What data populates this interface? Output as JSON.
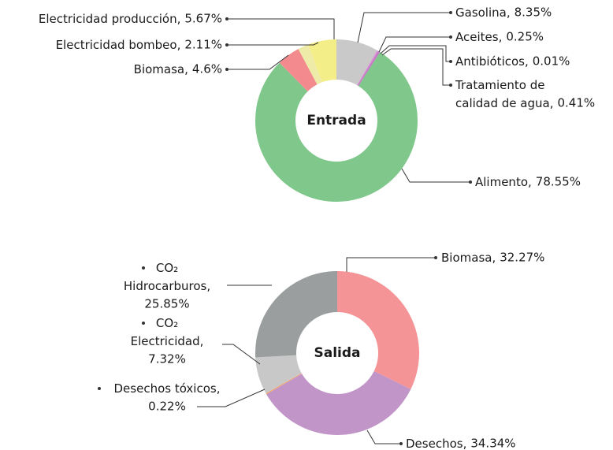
{
  "chart_data": [
    {
      "type": "donut",
      "center_label": "Entrada",
      "categories": [
        "Gasolina,",
        "Aceites,",
        "Antibióticos,",
        "Tratamiento de calidad de agua,",
        "Alimento,",
        "Biomasa,",
        "Electricidad bombeo,",
        "Electricidad producción,"
      ],
      "values": [
        8.35,
        0.25,
        0.01,
        0.41,
        78.55,
        4.6,
        2.11,
        5.67
      ],
      "value_labels": [
        "8.35%",
        "0.25%",
        "0.01%",
        "0.41%",
        "78.55%",
        "4.6%",
        "2.11%",
        "5.67%"
      ],
      "colors": [
        "#c9c9c9",
        "#dd8fd6",
        "#c77fc4",
        "#c27bc2",
        "#7fc78a",
        "#f28a8e",
        "#eeeaa8",
        "#f3ee88"
      ]
    },
    {
      "type": "donut",
      "center_label": "Salida",
      "categories": [
        "Biomasa,",
        "Desechos,",
        "Desechos tóxicos,",
        "CO₂ Electricidad,",
        "CO₂ Hidrocarburos,"
      ],
      "values": [
        32.27,
        34.34,
        0.22,
        7.32,
        25.85
      ],
      "value_labels": [
        "32.27%",
        "34.34%",
        "0.22%",
        "7.32%",
        "25.85%"
      ],
      "colors": [
        "#f59496",
        "#c195c8",
        "#f4a46a",
        "#c8c8c8",
        "#9b9e9f"
      ]
    }
  ]
}
